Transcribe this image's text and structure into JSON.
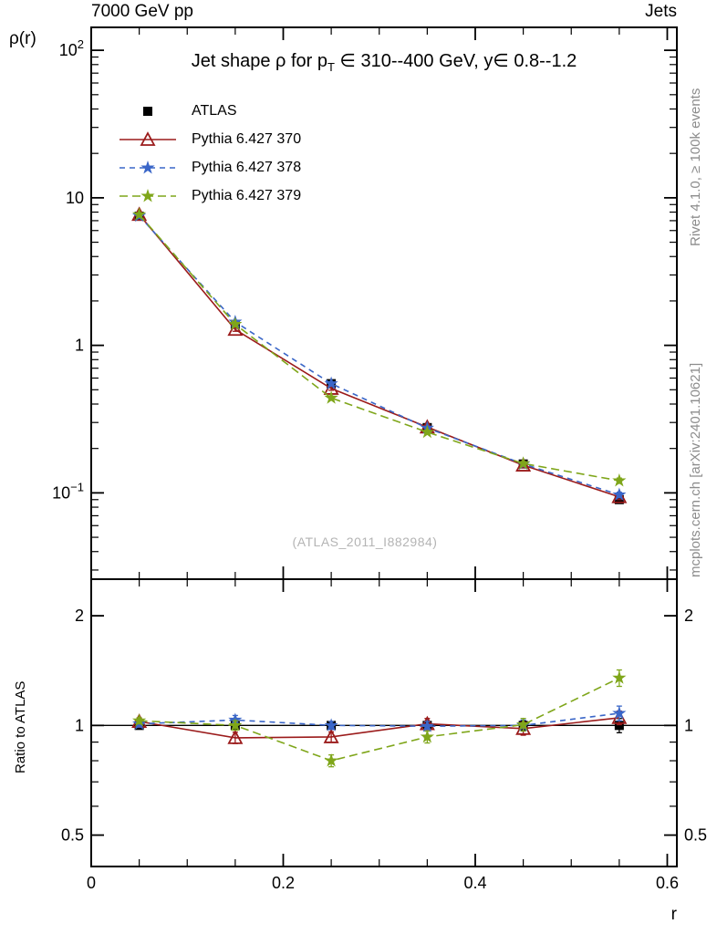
{
  "header": {
    "top_left": "7000 GeV pp",
    "top_right": "Jets"
  },
  "side_notes": {
    "top": "Rivet 4.1.0, ≥ 100k events",
    "bottom": "mcplots.cern.ch [arXiv:2401.10621]"
  },
  "watermark": "(ATLAS_2011_I882984)",
  "chart_data": {
    "type": "line",
    "title": "Jet shape ρ for p_T ∈ 310--400 GeV, y∈ 0.8--1.2",
    "title_parts": {
      "pre": "Jet shape ρ for p",
      "sub": "T",
      "post": " ∈ 310--400 GeV, y∈ 0.8--1.2"
    },
    "xlabel": "r",
    "ylabel": "ρ(r)",
    "ratio_ylabel": "Ratio to ATLAS",
    "legend_position": "top-left",
    "grid": false,
    "x": [
      0.05,
      0.15,
      0.25,
      0.35,
      0.45,
      0.55
    ],
    "xlim": [
      0,
      0.61
    ],
    "ylim_main": [
      0.026,
      143
    ],
    "ylim_ratio": [
      0.41,
      2.52
    ],
    "yscale": "log",
    "x_minor_step": 0.05,
    "x_ticks": [
      {
        "v": 0,
        "label": "0"
      },
      {
        "v": 0.2,
        "label": "0.2"
      },
      {
        "v": 0.4,
        "label": "0.4"
      },
      {
        "v": 0.6,
        "label": "0.6"
      }
    ],
    "y_ticks_main": [
      {
        "v": 0.1,
        "base": "10",
        "exp": "−1"
      },
      {
        "v": 1,
        "base": "1",
        "exp": ""
      },
      {
        "v": 10,
        "base": "10",
        "exp": ""
      },
      {
        "v": 100,
        "base": "10",
        "exp": "2"
      }
    ],
    "y_ticks_ratio": [
      {
        "v": 0.5,
        "label": "0.5"
      },
      {
        "v": 1,
        "label": "1"
      },
      {
        "v": 2,
        "label": "2"
      }
    ],
    "ratio_reference": 1,
    "series": [
      {
        "name": "ATLAS",
        "color": "#000000",
        "marker": "square",
        "line": "none",
        "dash": "",
        "values": [
          7.5,
          1.39,
          0.55,
          0.277,
          0.157,
          0.09
        ],
        "errors": [
          0.12,
          0.035,
          0.012,
          0.007,
          0.005,
          0.004
        ],
        "ratio": [
          1,
          1,
          1,
          1,
          1,
          1
        ],
        "ratio_errors": [
          0.015,
          0.025,
          0.022,
          0.026,
          0.03,
          0.045
        ]
      },
      {
        "name": "Pythia 6.427 370",
        "color": "#9b1b1b",
        "marker": "triangle-open",
        "line": "solid",
        "dash": "",
        "values": [
          7.7,
          1.28,
          0.51,
          0.279,
          0.154,
          0.094
        ],
        "errors": [
          0.09,
          0.035,
          0.014,
          0.008,
          0.006,
          0.004
        ],
        "ratio": [
          1.025,
          0.925,
          0.93,
          1.01,
          0.98,
          1.05
        ],
        "ratio_errors": [
          0.02,
          0.033,
          0.03,
          0.035,
          0.04,
          0.045
        ]
      },
      {
        "name": "Pythia 6.427 378",
        "color": "#3a66c8",
        "marker": "star",
        "line": "dashed",
        "dash": "6 5",
        "values": [
          7.55,
          1.44,
          0.55,
          0.275,
          0.157,
          0.097
        ],
        "errors": [
          0.09,
          0.035,
          0.013,
          0.007,
          0.005,
          0.004
        ],
        "ratio": [
          1.01,
          1.035,
          1.0,
          0.995,
          1.0,
          1.08
        ],
        "ratio_errors": [
          0.02,
          0.03,
          0.025,
          0.03,
          0.035,
          0.05
        ]
      },
      {
        "name": "Pythia 6.427 379",
        "color": "#7fa61a",
        "marker": "star",
        "line": "dashed",
        "dash": "9 5",
        "values": [
          7.7,
          1.39,
          0.44,
          0.258,
          0.158,
          0.121
        ],
        "errors": [
          0.09,
          0.035,
          0.012,
          0.008,
          0.005,
          0.005
        ],
        "ratio": [
          1.03,
          1.0,
          0.8,
          0.93,
          1.005,
          1.35
        ],
        "ratio_errors": [
          0.02,
          0.03,
          0.03,
          0.035,
          0.04,
          0.07
        ]
      }
    ]
  }
}
